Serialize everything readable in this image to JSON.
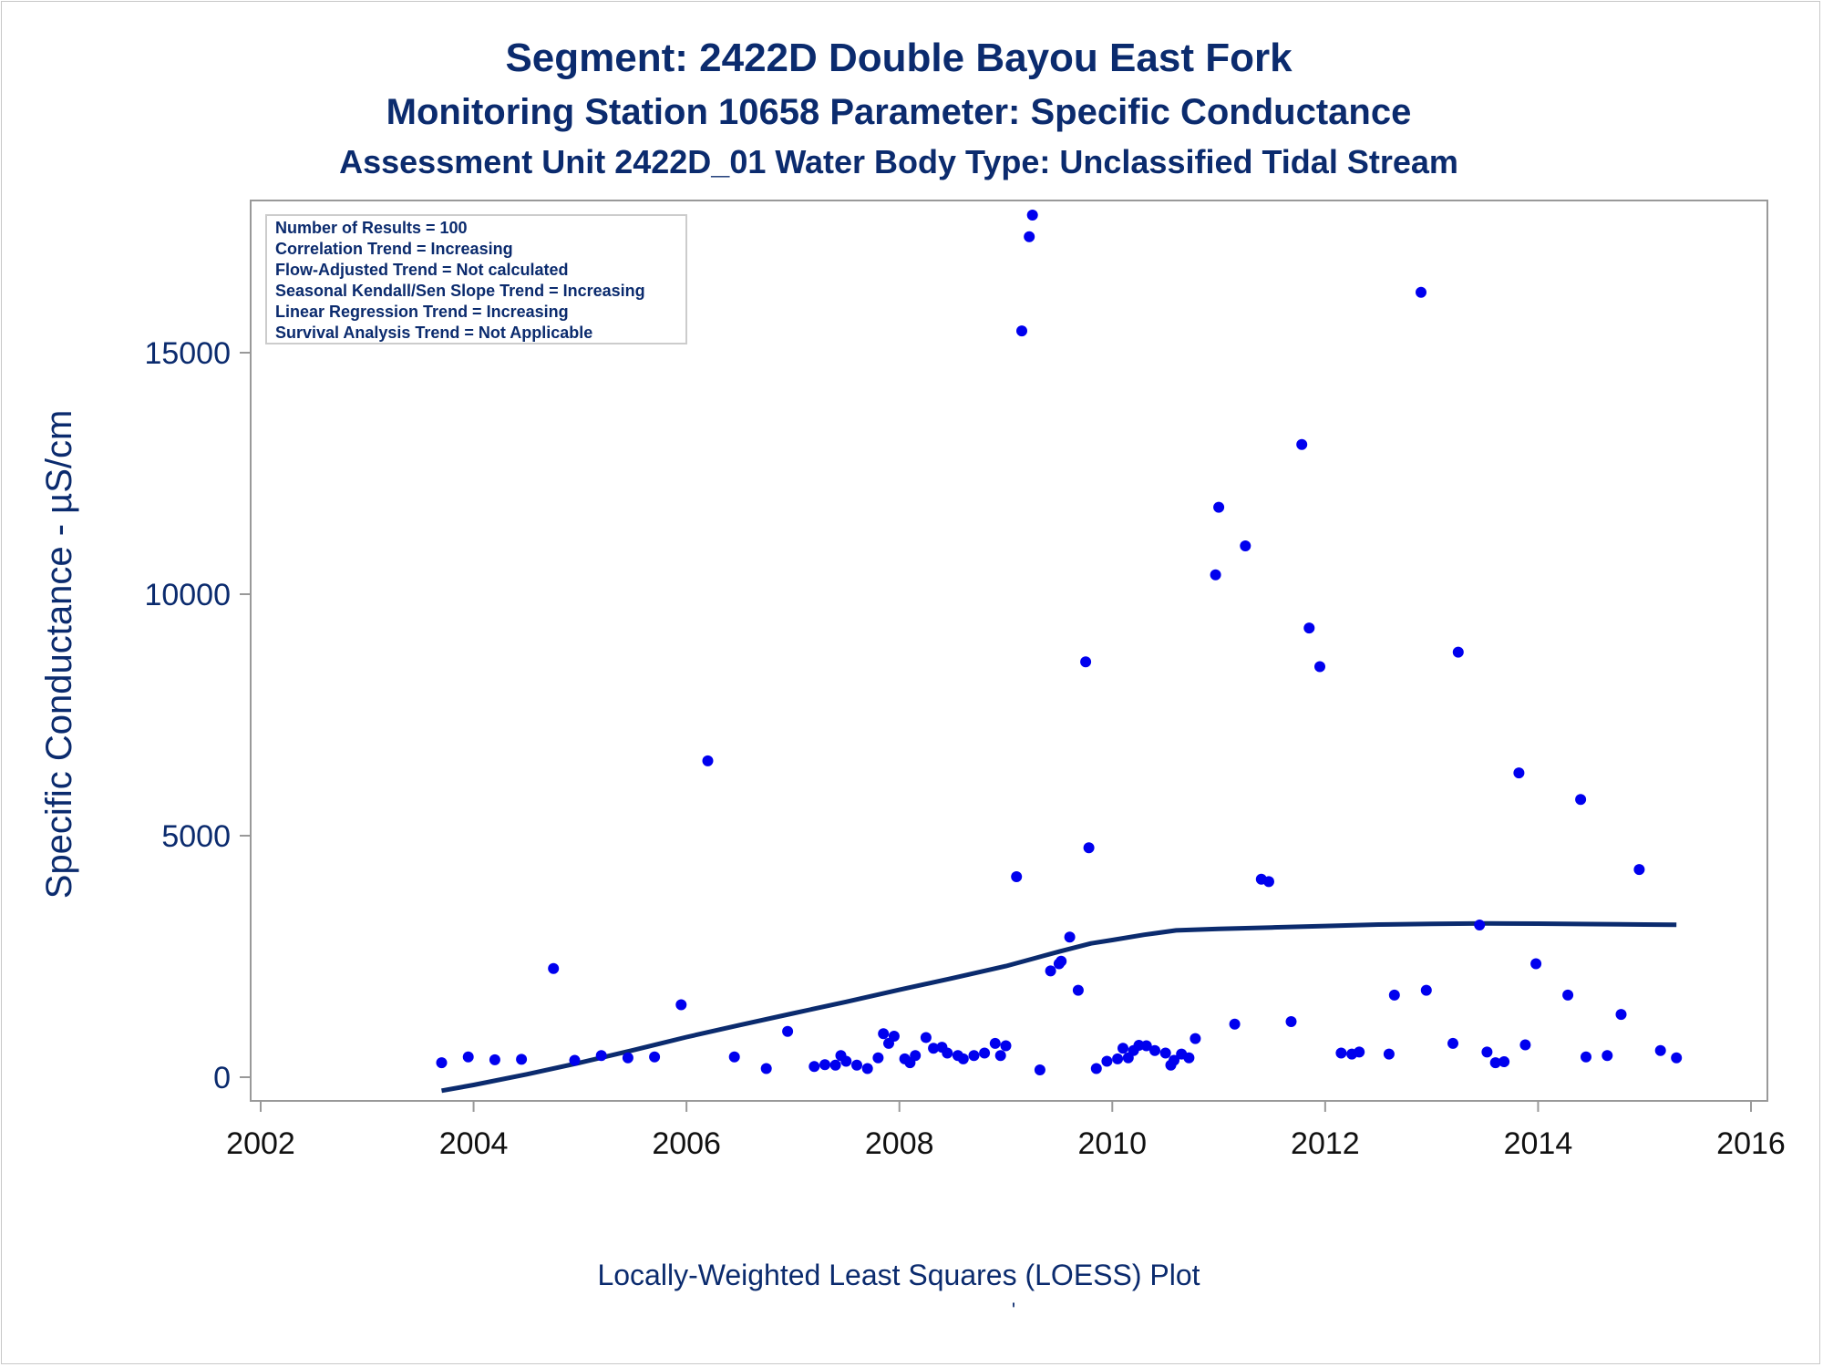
{
  "chart_data": {
    "type": "scatter",
    "title": "Segment: 2422D  Double Bayou East Fork",
    "subtitle_1": "Monitoring Station 10658 Parameter: Specific Conductance",
    "subtitle_2": "Assessment Unit 2422D_01   Water Body Type: Unclassified Tidal Stream",
    "xlabel": "Locally-Weighted Least Squares (LOESS) Plot",
    "footnote": "'",
    "ylabel": "Specific Conductance -  µS/cm",
    "xlim": [
      2002,
      2016
    ],
    "ylim": [
      -500,
      18200
    ],
    "x_ticks": [
      2002,
      2004,
      2006,
      2008,
      2010,
      2012,
      2014,
      2016
    ],
    "y_ticks": [
      0,
      5000,
      10000,
      15000
    ],
    "grid": false,
    "legend_position": "top-left",
    "info_box": [
      "Number of Results = 100",
      "Correlation Trend = Increasing",
      "Flow-Adjusted Trend = Not calculated",
      "Seasonal Kendall/Sen Slope Trend = Increasing",
      "Linear Regression Trend = Increasing",
      "Survival Analysis Trend = Not Applicable"
    ],
    "colors": {
      "points": "#0000ee",
      "loess": "#0b2b6e",
      "text": "#0b2b6e",
      "axis": "#999999"
    },
    "series": [
      {
        "name": "Observations",
        "kind": "scatter",
        "points": [
          [
            2003.7,
            300
          ],
          [
            2003.95,
            420
          ],
          [
            2004.2,
            360
          ],
          [
            2004.45,
            370
          ],
          [
            2004.75,
            2250
          ],
          [
            2004.95,
            350
          ],
          [
            2005.2,
            450
          ],
          [
            2005.45,
            400
          ],
          [
            2005.7,
            420
          ],
          [
            2005.95,
            1500
          ],
          [
            2006.2,
            6550
          ],
          [
            2006.45,
            420
          ],
          [
            2006.75,
            180
          ],
          [
            2006.95,
            950
          ],
          [
            2007.2,
            220
          ],
          [
            2007.3,
            260
          ],
          [
            2007.4,
            250
          ],
          [
            2007.45,
            450
          ],
          [
            2007.5,
            330
          ],
          [
            2007.6,
            250
          ],
          [
            2007.7,
            180
          ],
          [
            2007.8,
            400
          ],
          [
            2007.85,
            900
          ],
          [
            2007.9,
            700
          ],
          [
            2007.95,
            850
          ],
          [
            2008.05,
            380
          ],
          [
            2008.1,
            300
          ],
          [
            2008.15,
            450
          ],
          [
            2008.25,
            820
          ],
          [
            2008.32,
            600
          ],
          [
            2008.4,
            620
          ],
          [
            2008.45,
            500
          ],
          [
            2008.55,
            450
          ],
          [
            2008.6,
            380
          ],
          [
            2008.7,
            450
          ],
          [
            2008.8,
            500
          ],
          [
            2008.9,
            700
          ],
          [
            2008.95,
            450
          ],
          [
            2009.0,
            650
          ],
          [
            2009.1,
            4150
          ],
          [
            2009.15,
            15450
          ],
          [
            2009.22,
            17400
          ],
          [
            2009.25,
            17850
          ],
          [
            2009.32,
            150
          ],
          [
            2009.42,
            2200
          ],
          [
            2009.5,
            2350
          ],
          [
            2009.52,
            2400
          ],
          [
            2009.6,
            2900
          ],
          [
            2009.68,
            1800
          ],
          [
            2009.75,
            8600
          ],
          [
            2009.78,
            4750
          ],
          [
            2009.85,
            180
          ],
          [
            2009.95,
            330
          ],
          [
            2010.05,
            380
          ],
          [
            2010.1,
            600
          ],
          [
            2010.15,
            400
          ],
          [
            2010.2,
            550
          ],
          [
            2010.25,
            660
          ],
          [
            2010.32,
            650
          ],
          [
            2010.4,
            550
          ],
          [
            2010.5,
            500
          ],
          [
            2010.55,
            250
          ],
          [
            2010.58,
            350
          ],
          [
            2010.65,
            480
          ],
          [
            2010.72,
            400
          ],
          [
            2010.78,
            800
          ],
          [
            2010.97,
            10400
          ],
          [
            2011.0,
            11800
          ],
          [
            2011.15,
            1100
          ],
          [
            2011.25,
            11000
          ],
          [
            2011.4,
            4100
          ],
          [
            2011.47,
            4050
          ],
          [
            2011.68,
            1150
          ],
          [
            2011.78,
            13100
          ],
          [
            2011.85,
            9300
          ],
          [
            2011.95,
            8500
          ],
          [
            2012.15,
            500
          ],
          [
            2012.25,
            480
          ],
          [
            2012.32,
            520
          ],
          [
            2012.6,
            480
          ],
          [
            2012.65,
            1700
          ],
          [
            2012.9,
            16250
          ],
          [
            2012.95,
            1800
          ],
          [
            2013.2,
            700
          ],
          [
            2013.25,
            8800
          ],
          [
            2013.45,
            3150
          ],
          [
            2013.52,
            520
          ],
          [
            2013.6,
            300
          ],
          [
            2013.68,
            320
          ],
          [
            2013.82,
            6300
          ],
          [
            2013.88,
            670
          ],
          [
            2013.98,
            2350
          ],
          [
            2014.28,
            1700
          ],
          [
            2014.4,
            5750
          ],
          [
            2014.45,
            420
          ],
          [
            2014.65,
            450
          ],
          [
            2014.78,
            1300
          ],
          [
            2014.95,
            4300
          ],
          [
            2015.15,
            550
          ],
          [
            2015.3,
            400
          ]
        ]
      },
      {
        "name": "LOESS fit",
        "kind": "line",
        "points": [
          [
            2003.7,
            -280
          ],
          [
            2004.0,
            -160
          ],
          [
            2004.5,
            60
          ],
          [
            2005.0,
            300
          ],
          [
            2005.5,
            560
          ],
          [
            2006.0,
            830
          ],
          [
            2006.5,
            1080
          ],
          [
            2007.0,
            1320
          ],
          [
            2007.5,
            1560
          ],
          [
            2008.0,
            1810
          ],
          [
            2008.5,
            2050
          ],
          [
            2009.0,
            2300
          ],
          [
            2009.5,
            2600
          ],
          [
            2009.8,
            2770
          ],
          [
            2010.0,
            2840
          ],
          [
            2010.3,
            2950
          ],
          [
            2010.6,
            3040
          ],
          [
            2011.0,
            3070
          ],
          [
            2011.5,
            3100
          ],
          [
            2012.0,
            3130
          ],
          [
            2012.5,
            3160
          ],
          [
            2013.0,
            3175
          ],
          [
            2013.5,
            3185
          ],
          [
            2014.0,
            3180
          ],
          [
            2014.5,
            3170
          ],
          [
            2015.0,
            3160
          ],
          [
            2015.3,
            3155
          ]
        ]
      }
    ]
  }
}
